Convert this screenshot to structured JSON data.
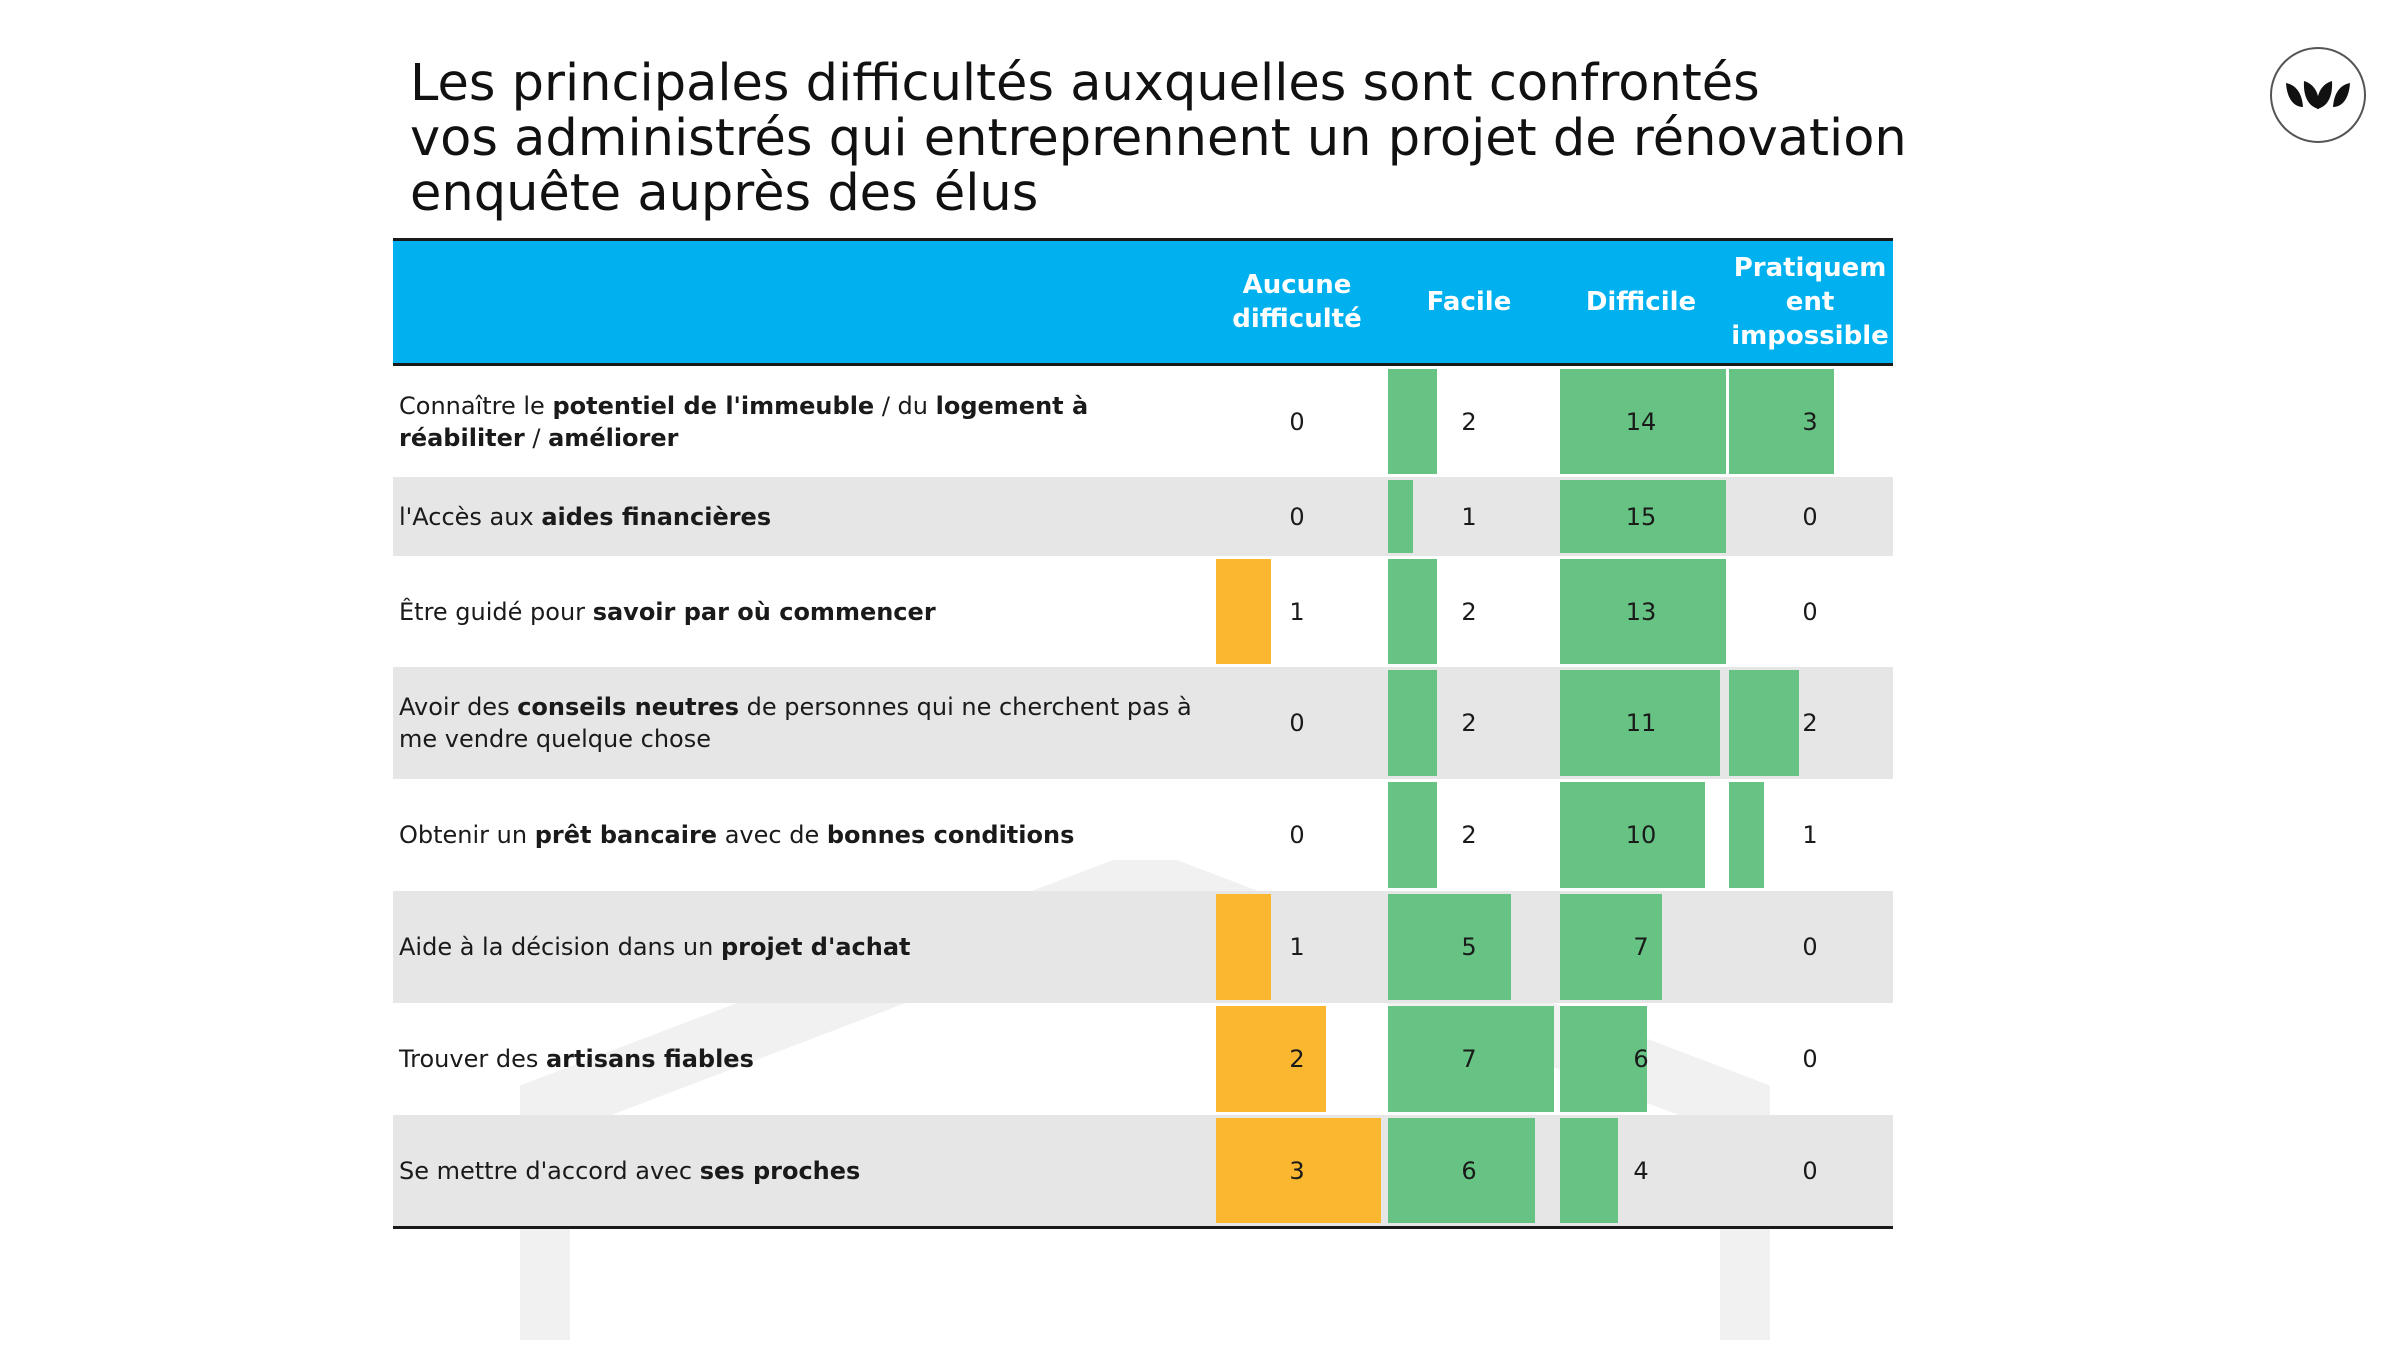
{
  "title_lines": [
    "Les principales difficultés auxquelles sont confrontés",
    "vos administrés qui entreprennent un projet de rénovation",
    "enquête auprès des élus"
  ],
  "colors": {
    "header_bg": "#00b0ef",
    "aucune_bar": "#fbb72f",
    "green_bar": "#66c383",
    "alt_row": "#e6e6e6"
  },
  "logo_icon": "leaves-logo-icon",
  "chart_data": {
    "type": "table",
    "columns": [
      "Aucune difficulté",
      "Facile",
      "Difficile",
      "Pratiquement impossible"
    ],
    "column_header_lines": [
      [
        "Aucune",
        "difficulté"
      ],
      [
        "Facile"
      ],
      [
        "Difficile"
      ],
      [
        "Pratiquem",
        "ent",
        "impossible"
      ]
    ],
    "rows": [
      {
        "label_parts": [
          {
            "t": "Connaître le ",
            "b": false
          },
          {
            "t": "potentiel de l'immeuble",
            "b": true
          },
          {
            "t": " / du ",
            "b": false
          },
          {
            "t": "logement à réabiliter",
            "b": true
          },
          {
            "t": " / ",
            "b": false
          },
          {
            "t": "améliorer",
            "b": true
          }
        ],
        "values": [
          0,
          2,
          14,
          3
        ]
      },
      {
        "label_parts": [
          {
            "t": "l'Accès aux ",
            "b": false
          },
          {
            "t": "aides financières",
            "b": true
          }
        ],
        "values": [
          0,
          1,
          15,
          0
        ]
      },
      {
        "label_parts": [
          {
            "t": "Être guidé pour ",
            "b": false
          },
          {
            "t": "savoir par où commencer",
            "b": true
          }
        ],
        "values": [
          1,
          2,
          13,
          0
        ]
      },
      {
        "label_parts": [
          {
            "t": "Avoir des ",
            "b": false
          },
          {
            "t": "conseils neutres",
            "b": true
          },
          {
            "t": " de personnes qui ne cherchent pas à me vendre quelque chose",
            "b": false
          }
        ],
        "values": [
          0,
          2,
          11,
          2
        ]
      },
      {
        "label_parts": [
          {
            "t": "Obtenir un ",
            "b": false
          },
          {
            "t": "prêt bancaire",
            "b": true
          },
          {
            "t": " avec de ",
            "b": false
          },
          {
            "t": "bonnes conditions",
            "b": true
          }
        ],
        "values": [
          0,
          2,
          10,
          1
        ]
      },
      {
        "label_parts": [
          {
            "t": "Aide à la décision dans un ",
            "b": false
          },
          {
            "t": "projet d'achat",
            "b": true
          }
        ],
        "values": [
          1,
          5,
          7,
          0
        ]
      },
      {
        "label_parts": [
          {
            "t": "Trouver des ",
            "b": false
          },
          {
            "t": "artisans fiables",
            "b": true
          }
        ],
        "values": [
          2,
          7,
          6,
          0
        ]
      },
      {
        "label_parts": [
          {
            "t": "Se mettre d'accord avec ",
            "b": false
          },
          {
            "t": "ses proches",
            "b": true
          }
        ],
        "values": [
          3,
          6,
          4,
          0
        ]
      }
    ]
  }
}
